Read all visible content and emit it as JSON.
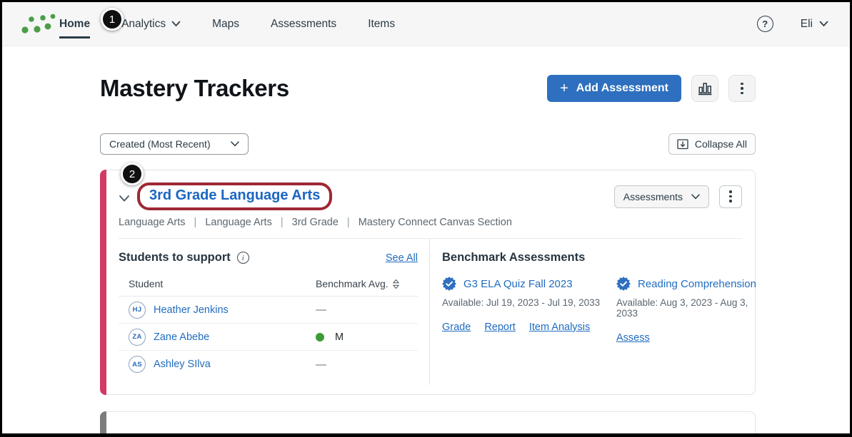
{
  "nav": {
    "items": [
      {
        "label": "Home"
      },
      {
        "label": "Analytics"
      },
      {
        "label": "Maps"
      },
      {
        "label": "Assessments"
      },
      {
        "label": "Items"
      }
    ],
    "help_label": "?",
    "user_label": "Eli"
  },
  "annotations": {
    "step1": "1",
    "step2": "2"
  },
  "page": {
    "title": "Mastery Trackers"
  },
  "header_actions": {
    "add_assessment": "Add Assessment"
  },
  "icons": {
    "plus": "+",
    "info": "i"
  },
  "toolbar": {
    "sort_value": "Created (Most Recent)",
    "collapse_all": "Collapse All"
  },
  "tracker": {
    "title": "3rd Grade Language Arts",
    "assessments_button": "Assessments",
    "breadcrumb": [
      "Language Arts",
      "Language Arts",
      "3rd Grade",
      "Mastery Connect Canvas Section"
    ],
    "students": {
      "heading": "Students to support",
      "see_all": "See All",
      "col_student": "Student",
      "col_avg": "Benchmark Avg.",
      "rows": [
        {
          "initials": "HJ",
          "name": "Heather Jenkins",
          "value": "—"
        },
        {
          "initials": "ZA",
          "name": "Zane Abebe",
          "value": "M"
        },
        {
          "initials": "AS",
          "name": "Ashley SIlva",
          "value": "—"
        }
      ]
    },
    "benchmarks": {
      "heading": "Benchmark Assessments",
      "items": [
        {
          "name": "G3 ELA Quiz Fall 2023",
          "available": "Available: Jul 19, 2023 - Jul 19, 2033",
          "links": [
            "Grade",
            "Report",
            "Item Analysis"
          ]
        },
        {
          "name": "Reading Comprehension",
          "available": "Available: Aug 3, 2023 - Aug 3, 2033",
          "links": [
            "Assess"
          ]
        }
      ]
    }
  },
  "colors": {
    "accent_blue": "#2e70bf",
    "link_blue": "#1f6cbf",
    "stripe_pink": "#d23a63",
    "annotation_red": "#9e2834",
    "mastery_green": "#3e9b35",
    "logo_green": "#4b9e47"
  }
}
